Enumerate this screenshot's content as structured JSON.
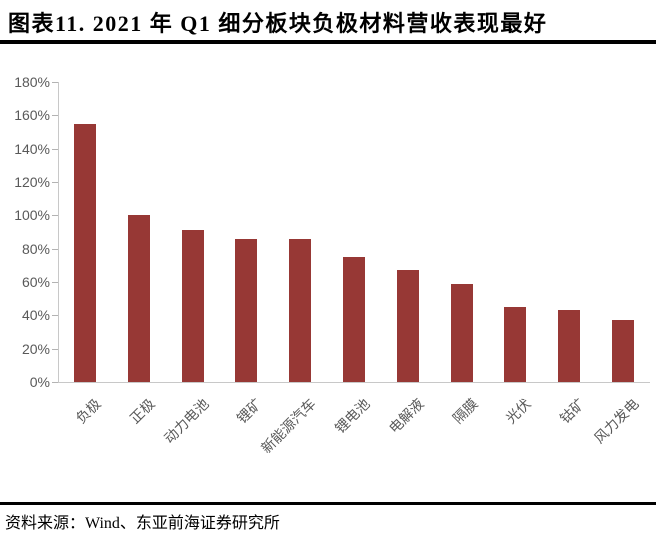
{
  "title": "图表11. 2021 年 Q1 细分板块负极材料营收表现最好",
  "source": "资料来源：Wind、东亚前海证券研究所",
  "colors": {
    "bar": "#973835",
    "axis_text": "#595959",
    "axis_line": "#c8c8c8",
    "tick_mark": "#b3b3b3",
    "rule": "#000000",
    "background": "#ffffff"
  },
  "chart_data": {
    "type": "bar",
    "categories": [
      "负极",
      "正极",
      "动力电池",
      "锂矿",
      "新能源汽车",
      "锂电池",
      "电解液",
      "隔膜",
      "光伏",
      "钴矿",
      "风力发电"
    ],
    "values": [
      155,
      100,
      91,
      86,
      86,
      75,
      67,
      59,
      45,
      43,
      37
    ],
    "title": "",
    "xlabel": "",
    "ylabel": "",
    "ylim": [
      0,
      180
    ],
    "ytick_step": 20,
    "ytick_labels": [
      "0%",
      "20%",
      "40%",
      "60%",
      "80%",
      "100%",
      "120%",
      "140%",
      "160%",
      "180%"
    ],
    "grid": false,
    "legend": null,
    "bar_color": "#973835",
    "value_unit": "%"
  }
}
